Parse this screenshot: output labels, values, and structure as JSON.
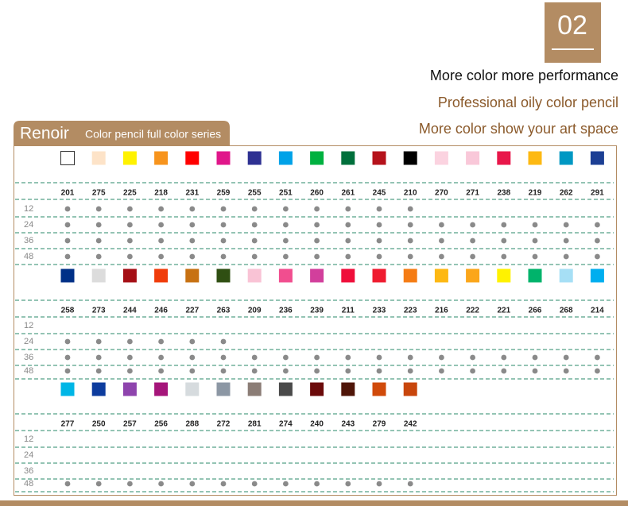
{
  "badge": "02",
  "taglines": [
    "More color more performance",
    "Professional oily color pencil",
    "More color show your art space"
  ],
  "tab": {
    "brand": "Renoir",
    "subtitle": "Color pencil full color series"
  },
  "sections": [
    {
      "codes": [
        "201",
        "275",
        "225",
        "218",
        "231",
        "259",
        "255",
        "251",
        "260",
        "261",
        "245",
        "210",
        "270",
        "271",
        "238",
        "219",
        "262",
        "291"
      ],
      "colors": [
        "#ffffff",
        "#fde3c8",
        "#fff200",
        "#f7941d",
        "#ff0000",
        "#e0168a",
        "#2e3192",
        "#00a2e8",
        "#00b140",
        "#00703c",
        "#b5121b",
        "#000000",
        "#fbd3e0",
        "#f9c8d9",
        "#e8174a",
        "#fdb913",
        "#0098c3",
        "#1c3f94"
      ],
      "sets": [
        {
          "label": "12",
          "dots": [
            true,
            true,
            true,
            true,
            true,
            true,
            true,
            true,
            true,
            true,
            true,
            true,
            false,
            false,
            false,
            false,
            false,
            false
          ]
        },
        {
          "label": "24",
          "dots": [
            true,
            true,
            true,
            true,
            true,
            true,
            true,
            true,
            true,
            true,
            true,
            true,
            true,
            true,
            true,
            true,
            true,
            true
          ]
        },
        {
          "label": "36",
          "dots": [
            true,
            true,
            true,
            true,
            true,
            true,
            true,
            true,
            true,
            true,
            true,
            true,
            true,
            true,
            true,
            true,
            true,
            true
          ]
        },
        {
          "label": "48",
          "dots": [
            true,
            true,
            true,
            true,
            true,
            true,
            true,
            true,
            true,
            true,
            true,
            true,
            true,
            true,
            true,
            true,
            true,
            true
          ]
        }
      ]
    },
    {
      "codes": [
        "258",
        "273",
        "244",
        "246",
        "227",
        "263",
        "209",
        "236",
        "239",
        "211",
        "233",
        "223",
        "216",
        "222",
        "221",
        "266",
        "268",
        "214"
      ],
      "colors": [
        "#003087",
        "#dcdcdc",
        "#a50f15",
        "#f03c0a",
        "#c77112",
        "#2f4f12",
        "#f9c3d5",
        "#f14e8f",
        "#d23f9c",
        "#ef0e3a",
        "#ef1b2f",
        "#f57c14",
        "#fdb813",
        "#fba61a",
        "#fff200",
        "#00b36b",
        "#a6dff5",
        "#00aeef"
      ],
      "sets": [
        {
          "label": "12",
          "dots": [
            false,
            false,
            false,
            false,
            false,
            false,
            false,
            false,
            false,
            false,
            false,
            false,
            false,
            false,
            false,
            false,
            false,
            false
          ]
        },
        {
          "label": "24",
          "dots": [
            true,
            true,
            true,
            true,
            true,
            true,
            false,
            false,
            false,
            false,
            false,
            false,
            false,
            false,
            false,
            false,
            false,
            false
          ]
        },
        {
          "label": "36",
          "dots": [
            true,
            true,
            true,
            true,
            true,
            true,
            true,
            true,
            true,
            true,
            true,
            true,
            true,
            true,
            true,
            true,
            true,
            true
          ]
        },
        {
          "label": "48",
          "dots": [
            true,
            true,
            true,
            true,
            true,
            true,
            true,
            true,
            true,
            true,
            true,
            true,
            true,
            true,
            true,
            true,
            true,
            true
          ]
        }
      ]
    },
    {
      "codes": [
        "277",
        "250",
        "257",
        "256",
        "288",
        "272",
        "281",
        "274",
        "240",
        "243",
        "279",
        "242"
      ],
      "colors": [
        "#00b6e6",
        "#0d3c9e",
        "#8e44ad",
        "#a5157a",
        "#d6dbde",
        "#8c97a4",
        "#8b7d76",
        "#4a4a4a",
        "#6b0a0a",
        "#4f1508",
        "#d04a0a",
        "#c8460c"
      ],
      "sets": [
        {
          "label": "12",
          "dots": [
            false,
            false,
            false,
            false,
            false,
            false,
            false,
            false,
            false,
            false,
            false,
            false
          ]
        },
        {
          "label": "24",
          "dots": [
            false,
            false,
            false,
            false,
            false,
            false,
            false,
            false,
            false,
            false,
            false,
            false
          ]
        },
        {
          "label": "36",
          "dots": [
            false,
            false,
            false,
            false,
            false,
            false,
            false,
            false,
            false,
            false,
            false,
            false
          ]
        },
        {
          "label": "48",
          "dots": [
            true,
            true,
            true,
            true,
            true,
            true,
            true,
            true,
            true,
            true,
            true,
            true
          ]
        }
      ]
    }
  ]
}
